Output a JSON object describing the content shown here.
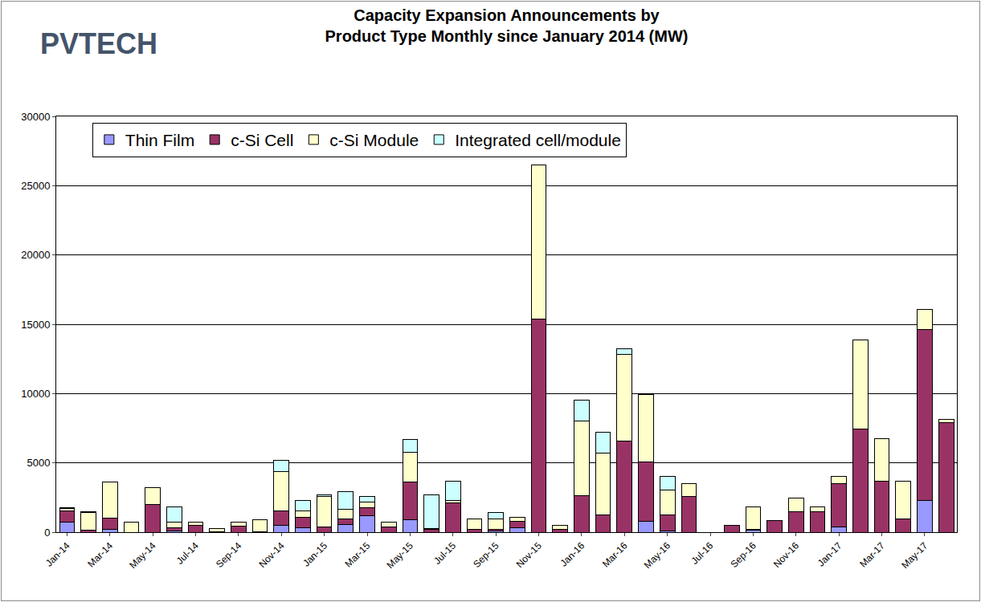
{
  "chart_data": {
    "type": "bar",
    "title": "Capacity Expansion Announcements by\nProduct Type Monthly since January 2014 (MW)",
    "annotations": [
      "PVTECH"
    ],
    "categories": [
      "Jan-14",
      null,
      "Mar-14",
      null,
      "May-14",
      null,
      "Jul-14",
      null,
      "Sep-14",
      null,
      "Nov-14",
      null,
      "Jan-15",
      null,
      "Mar-15",
      null,
      "May-15",
      null,
      "Jul-15",
      null,
      "Sep-15",
      null,
      "Nov-15",
      null,
      "Jan-16",
      null,
      "Mar-16",
      null,
      "May-16",
      null,
      "Jul-16",
      null,
      "Sep-16",
      null,
      "Nov-16",
      null,
      "Jan-17",
      null,
      "Mar-17",
      null,
      "May-17",
      null
    ],
    "series": [
      {
        "name": "Thin Film",
        "color": "#9999ff",
        "values": [
          750,
          0,
          200,
          0,
          0,
          100,
          0,
          0,
          0,
          0,
          500,
          300,
          0,
          550,
          1200,
          0,
          900,
          0,
          0,
          0,
          100,
          300,
          0,
          0,
          0,
          0,
          0,
          800,
          100,
          0,
          0,
          0,
          150,
          0,
          0,
          0,
          350,
          0,
          0,
          0,
          2300,
          0
        ]
      },
      {
        "name": "c-Si Cell",
        "color": "#993366",
        "values": [
          800,
          150,
          800,
          0,
          2000,
          200,
          500,
          50,
          450,
          50,
          1050,
          800,
          400,
          400,
          550,
          350,
          2700,
          200,
          2100,
          200,
          100,
          500,
          15400,
          200,
          2650,
          1250,
          6550,
          4250,
          1150,
          2600,
          0,
          500,
          50,
          850,
          1500,
          1450,
          3150,
          7450,
          3700,
          950,
          12300,
          7900
        ]
      },
      {
        "name": "c-Si Module",
        "color": "#ffffcc",
        "values": [
          150,
          1250,
          2600,
          700,
          1200,
          450,
          250,
          200,
          250,
          850,
          2850,
          450,
          2150,
          700,
          450,
          350,
          2150,
          50,
          200,
          750,
          750,
          250,
          11100,
          300,
          5350,
          4450,
          6300,
          4900,
          1800,
          900,
          0,
          0,
          1600,
          0,
          950,
          400,
          500,
          6400,
          3050,
          2700,
          1500,
          250
        ]
      },
      {
        "name": "Integrated cell/module",
        "color": "#ccffff",
        "values": [
          50,
          50,
          0,
          0,
          0,
          1050,
          0,
          0,
          0,
          0,
          800,
          750,
          150,
          1250,
          400,
          0,
          950,
          2450,
          1350,
          0,
          450,
          0,
          0,
          0,
          1500,
          1500,
          400,
          0,
          950,
          0,
          0,
          0,
          0,
          0,
          0,
          0,
          0,
          0,
          0,
          0,
          0,
          0
        ]
      }
    ],
    "stacked": true,
    "ylim": [
      0,
      30000
    ],
    "yticks": [
      0,
      5000,
      10000,
      15000,
      20000,
      25000,
      30000
    ],
    "grid": true,
    "legend": "top"
  }
}
